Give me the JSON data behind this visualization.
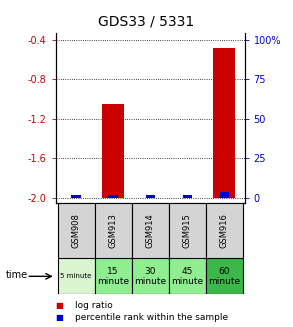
{
  "title": "GDS33 / 5331",
  "samples": [
    "GSM908",
    "GSM913",
    "GSM914",
    "GSM915",
    "GSM916"
  ],
  "time_labels_line1": [
    "5 minute",
    "15",
    "30",
    "45",
    "60"
  ],
  "time_labels_line2": [
    "",
    "minute",
    "minute",
    "minute",
    "minute"
  ],
  "time_colors": [
    "#d9f5d0",
    "#90ee90",
    "#90ee90",
    "#90ee90",
    "#3cb84a"
  ],
  "log_ratio": [
    -2.0,
    -1.05,
    -2.0,
    -2.0,
    -0.48
  ],
  "percentile_values": [
    2,
    2,
    2,
    2,
    4
  ],
  "bar_bottom": -2.0,
  "ylim": [
    -2.05,
    -0.33
  ],
  "yticks_left": [
    -2.0,
    -1.6,
    -1.2,
    -0.8,
    -0.4
  ],
  "yticks_right_vals": [
    -2.0,
    -1.6,
    -1.2,
    -0.8,
    -0.4
  ],
  "yticks_right_labels": [
    "0",
    "25",
    "50",
    "75",
    "100%"
  ],
  "left_tick_color": "#cc0000",
  "right_tick_color": "#0000cc",
  "bar_color_log": "#cc0000",
  "bar_color_pct": "#0000cc",
  "bg_color": "#ffffff",
  "title_fontsize": 10,
  "tick_fontsize": 7,
  "legend_fontsize": 6.5,
  "sample_bg": "#d4d4d4",
  "bar_width": 0.6,
  "pct_bar_width": 0.25
}
